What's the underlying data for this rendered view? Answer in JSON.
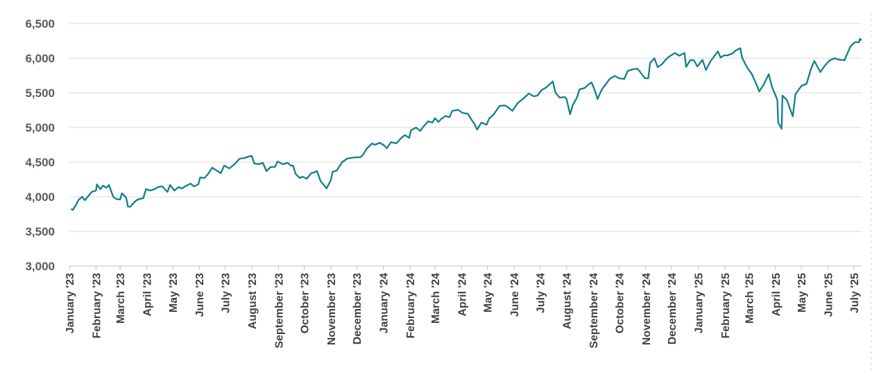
{
  "chart_data": {
    "type": "line",
    "title": "",
    "xlabel": "",
    "ylabel": "",
    "ylim": [
      3000,
      6500
    ],
    "yticks": [
      "3,000",
      "3,500",
      "4,000",
      "4,500",
      "5,000",
      "5,500",
      "6,000",
      "6,500"
    ],
    "ytick_values": [
      3000,
      3500,
      4000,
      4500,
      5000,
      5500,
      6000,
      6500
    ],
    "grid": true,
    "legend": "none",
    "line_color": "#0f7f8c",
    "x_start": "2023-01-01",
    "x_end": "2025-07-10",
    "xticks": [
      {
        "date": "2023-01-01",
        "label": "January '23"
      },
      {
        "date": "2023-02-01",
        "label": "February '23"
      },
      {
        "date": "2023-03-01",
        "label": "March '23"
      },
      {
        "date": "2023-04-01",
        "label": "April '23"
      },
      {
        "date": "2023-05-01",
        "label": "May '23"
      },
      {
        "date": "2023-06-01",
        "label": "June '23"
      },
      {
        "date": "2023-07-01",
        "label": "July '23"
      },
      {
        "date": "2023-08-01",
        "label": "August '23"
      },
      {
        "date": "2023-09-01",
        "label": "September '23"
      },
      {
        "date": "2023-10-01",
        "label": "October '23"
      },
      {
        "date": "2023-11-01",
        "label": "November '23"
      },
      {
        "date": "2023-12-01",
        "label": "December '23"
      },
      {
        "date": "2024-01-01",
        "label": "January '24"
      },
      {
        "date": "2024-02-01",
        "label": "February '24"
      },
      {
        "date": "2024-03-01",
        "label": "March '24"
      },
      {
        "date": "2024-04-01",
        "label": "April '24"
      },
      {
        "date": "2024-05-01",
        "label": "May '24"
      },
      {
        "date": "2024-06-01",
        "label": "June '24"
      },
      {
        "date": "2024-07-01",
        "label": "July '24"
      },
      {
        "date": "2024-08-01",
        "label": "August '24"
      },
      {
        "date": "2024-09-01",
        "label": "September '24"
      },
      {
        "date": "2024-10-01",
        "label": "October '24"
      },
      {
        "date": "2024-11-01",
        "label": "November '24"
      },
      {
        "date": "2024-12-01",
        "label": "December '24"
      },
      {
        "date": "2025-01-01",
        "label": "January '25"
      },
      {
        "date": "2025-02-01",
        "label": "February '25"
      },
      {
        "date": "2025-03-01",
        "label": "March '25"
      },
      {
        "date": "2025-04-01",
        "label": "April '25"
      },
      {
        "date": "2025-05-01",
        "label": "May '25"
      },
      {
        "date": "2025-06-01",
        "label": "June '25"
      },
      {
        "date": "2025-07-01",
        "label": "July '25"
      }
    ],
    "series": [
      {
        "color": "#0f7f8c",
        "points": [
          [
            "2023-01-03",
            3825
          ],
          [
            "2023-01-05",
            3810
          ],
          [
            "2023-01-09",
            3890
          ],
          [
            "2023-01-12",
            3960
          ],
          [
            "2023-01-16",
            4000
          ],
          [
            "2023-01-19",
            3950
          ],
          [
            "2023-01-23",
            4010
          ],
          [
            "2023-01-27",
            4070
          ],
          [
            "2023-02-01",
            4090
          ],
          [
            "2023-02-02",
            4180
          ],
          [
            "2023-02-06",
            4110
          ],
          [
            "2023-02-09",
            4160
          ],
          [
            "2023-02-13",
            4130
          ],
          [
            "2023-02-16",
            4170
          ],
          [
            "2023-02-21",
            4000
          ],
          [
            "2023-02-24",
            3970
          ],
          [
            "2023-03-01",
            3960
          ],
          [
            "2023-03-03",
            4050
          ],
          [
            "2023-03-08",
            3990
          ],
          [
            "2023-03-10",
            3860
          ],
          [
            "2023-03-13",
            3855
          ],
          [
            "2023-03-15",
            3890
          ],
          [
            "2023-03-20",
            3950
          ],
          [
            "2023-03-24",
            3970
          ],
          [
            "2023-03-28",
            3980
          ],
          [
            "2023-03-31",
            4110
          ],
          [
            "2023-04-05",
            4090
          ],
          [
            "2023-04-10",
            4110
          ],
          [
            "2023-04-14",
            4140
          ],
          [
            "2023-04-19",
            4150
          ],
          [
            "2023-04-25",
            4070
          ],
          [
            "2023-04-28",
            4170
          ],
          [
            "2023-05-03",
            4090
          ],
          [
            "2023-05-08",
            4140
          ],
          [
            "2023-05-12",
            4120
          ],
          [
            "2023-05-17",
            4160
          ],
          [
            "2023-05-22",
            4190
          ],
          [
            "2023-05-26",
            4150
          ],
          [
            "2023-05-31",
            4180
          ],
          [
            "2023-06-02",
            4280
          ],
          [
            "2023-06-07",
            4270
          ],
          [
            "2023-06-12",
            4340
          ],
          [
            "2023-06-16",
            4420
          ],
          [
            "2023-06-21",
            4380
          ],
          [
            "2023-06-26",
            4340
          ],
          [
            "2023-06-30",
            4450
          ],
          [
            "2023-07-06",
            4410
          ],
          [
            "2023-07-12",
            4470
          ],
          [
            "2023-07-18",
            4550
          ],
          [
            "2023-07-24",
            4560
          ],
          [
            "2023-07-28",
            4580
          ],
          [
            "2023-08-01",
            4590
          ],
          [
            "2023-08-04",
            4480
          ],
          [
            "2023-08-09",
            4470
          ],
          [
            "2023-08-14",
            4490
          ],
          [
            "2023-08-18",
            4370
          ],
          [
            "2023-08-23",
            4430
          ],
          [
            "2023-08-28",
            4430
          ],
          [
            "2023-08-31",
            4510
          ],
          [
            "2023-09-06",
            4470
          ],
          [
            "2023-09-12",
            4490
          ],
          [
            "2023-09-15",
            4450
          ],
          [
            "2023-09-18",
            4450
          ],
          [
            "2023-09-21",
            4330
          ],
          [
            "2023-09-26",
            4270
          ],
          [
            "2023-09-29",
            4290
          ],
          [
            "2023-10-04",
            4260
          ],
          [
            "2023-10-09",
            4340
          ],
          [
            "2023-10-12",
            4350
          ],
          [
            "2023-10-16",
            4370
          ],
          [
            "2023-10-20",
            4225
          ],
          [
            "2023-10-26",
            4140
          ],
          [
            "2023-10-27",
            4120
          ],
          [
            "2023-11-01",
            4240
          ],
          [
            "2023-11-03",
            4360
          ],
          [
            "2023-11-08",
            4380
          ],
          [
            "2023-11-14",
            4500
          ],
          [
            "2023-11-20",
            4550
          ],
          [
            "2023-11-24",
            4560
          ],
          [
            "2023-11-30",
            4570
          ],
          [
            "2023-12-05",
            4570
          ],
          [
            "2023-12-08",
            4600
          ],
          [
            "2023-12-13",
            4700
          ],
          [
            "2023-12-19",
            4770
          ],
          [
            "2023-12-22",
            4750
          ],
          [
            "2023-12-28",
            4780
          ],
          [
            "2024-01-02",
            4740
          ],
          [
            "2024-01-05",
            4700
          ],
          [
            "2024-01-10",
            4790
          ],
          [
            "2024-01-16",
            4770
          ],
          [
            "2024-01-22",
            4850
          ],
          [
            "2024-01-26",
            4890
          ],
          [
            "2024-01-31",
            4850
          ],
          [
            "2024-02-02",
            4960
          ],
          [
            "2024-02-08",
            5000
          ],
          [
            "2024-02-13",
            4950
          ],
          [
            "2024-02-16",
            5005
          ],
          [
            "2024-02-22",
            5090
          ],
          [
            "2024-02-27",
            5070
          ],
          [
            "2024-03-01",
            5135
          ],
          [
            "2024-03-05",
            5080
          ],
          [
            "2024-03-08",
            5120
          ],
          [
            "2024-03-13",
            5165
          ],
          [
            "2024-03-18",
            5150
          ],
          [
            "2024-03-21",
            5240
          ],
          [
            "2024-03-28",
            5255
          ],
          [
            "2024-04-02",
            5210
          ],
          [
            "2024-04-08",
            5200
          ],
          [
            "2024-04-12",
            5120
          ],
          [
            "2024-04-16",
            5050
          ],
          [
            "2024-04-19",
            4970
          ],
          [
            "2024-04-24",
            5070
          ],
          [
            "2024-04-30",
            5040
          ],
          [
            "2024-05-03",
            5130
          ],
          [
            "2024-05-08",
            5185
          ],
          [
            "2024-05-15",
            5310
          ],
          [
            "2024-05-21",
            5320
          ],
          [
            "2024-05-24",
            5300
          ],
          [
            "2024-05-30",
            5240
          ],
          [
            "2024-06-05",
            5350
          ],
          [
            "2024-06-12",
            5420
          ],
          [
            "2024-06-18",
            5490
          ],
          [
            "2024-06-24",
            5450
          ],
          [
            "2024-06-28",
            5460
          ],
          [
            "2024-07-03",
            5540
          ],
          [
            "2024-07-08",
            5575
          ],
          [
            "2024-07-12",
            5620
          ],
          [
            "2024-07-16",
            5665
          ],
          [
            "2024-07-19",
            5505
          ],
          [
            "2024-07-24",
            5430
          ],
          [
            "2024-07-30",
            5440
          ],
          [
            "2024-08-01",
            5410
          ],
          [
            "2024-08-05",
            5190
          ],
          [
            "2024-08-08",
            5320
          ],
          [
            "2024-08-13",
            5430
          ],
          [
            "2024-08-16",
            5550
          ],
          [
            "2024-08-22",
            5570
          ],
          [
            "2024-08-27",
            5625
          ],
          [
            "2024-08-30",
            5650
          ],
          [
            "2024-09-03",
            5530
          ],
          [
            "2024-09-06",
            5410
          ],
          [
            "2024-09-11",
            5550
          ],
          [
            "2024-09-16",
            5630
          ],
          [
            "2024-09-20",
            5700
          ],
          [
            "2024-09-26",
            5745
          ],
          [
            "2024-10-01",
            5710
          ],
          [
            "2024-10-07",
            5700
          ],
          [
            "2024-10-11",
            5815
          ],
          [
            "2024-10-17",
            5840
          ],
          [
            "2024-10-22",
            5850
          ],
          [
            "2024-10-25",
            5810
          ],
          [
            "2024-10-31",
            5710
          ],
          [
            "2024-11-04",
            5710
          ],
          [
            "2024-11-06",
            5930
          ],
          [
            "2024-11-11",
            6000
          ],
          [
            "2024-11-15",
            5870
          ],
          [
            "2024-11-20",
            5915
          ],
          [
            "2024-11-25",
            5990
          ],
          [
            "2024-11-29",
            6030
          ],
          [
            "2024-12-05",
            6075
          ],
          [
            "2024-12-10",
            6035
          ],
          [
            "2024-12-16",
            6075
          ],
          [
            "2024-12-18",
            5875
          ],
          [
            "2024-12-23",
            5975
          ],
          [
            "2024-12-27",
            5970
          ],
          [
            "2024-12-31",
            5880
          ],
          [
            "2025-01-06",
            5975
          ],
          [
            "2025-01-10",
            5830
          ],
          [
            "2025-01-15",
            5950
          ],
          [
            "2025-01-21",
            6050
          ],
          [
            "2025-01-24",
            6100
          ],
          [
            "2025-01-27",
            6010
          ],
          [
            "2025-01-31",
            6040
          ],
          [
            "2025-02-04",
            6040
          ],
          [
            "2025-02-10",
            6070
          ],
          [
            "2025-02-14",
            6115
          ],
          [
            "2025-02-19",
            6145
          ],
          [
            "2025-02-21",
            6010
          ],
          [
            "2025-02-27",
            5860
          ],
          [
            "2025-03-04",
            5780
          ],
          [
            "2025-03-10",
            5615
          ],
          [
            "2025-03-13",
            5520
          ],
          [
            "2025-03-18",
            5615
          ],
          [
            "2025-03-24",
            5770
          ],
          [
            "2025-03-28",
            5580
          ],
          [
            "2025-04-03",
            5400
          ],
          [
            "2025-04-04",
            5070
          ],
          [
            "2025-04-08",
            4980
          ],
          [
            "2025-04-09",
            5460
          ],
          [
            "2025-04-14",
            5400
          ],
          [
            "2025-04-21",
            5160
          ],
          [
            "2025-04-24",
            5480
          ],
          [
            "2025-05-01",
            5600
          ],
          [
            "2025-05-07",
            5630
          ],
          [
            "2025-05-12",
            5840
          ],
          [
            "2025-05-16",
            5960
          ],
          [
            "2025-05-23",
            5800
          ],
          [
            "2025-05-28",
            5890
          ],
          [
            "2025-06-03",
            5970
          ],
          [
            "2025-06-09",
            6000
          ],
          [
            "2025-06-13",
            5980
          ],
          [
            "2025-06-20",
            5970
          ],
          [
            "2025-06-27",
            6170
          ],
          [
            "2025-07-02",
            6230
          ],
          [
            "2025-07-07",
            6230
          ],
          [
            "2025-07-08",
            6280
          ],
          [
            "2025-07-10",
            6260
          ]
        ]
      }
    ]
  }
}
